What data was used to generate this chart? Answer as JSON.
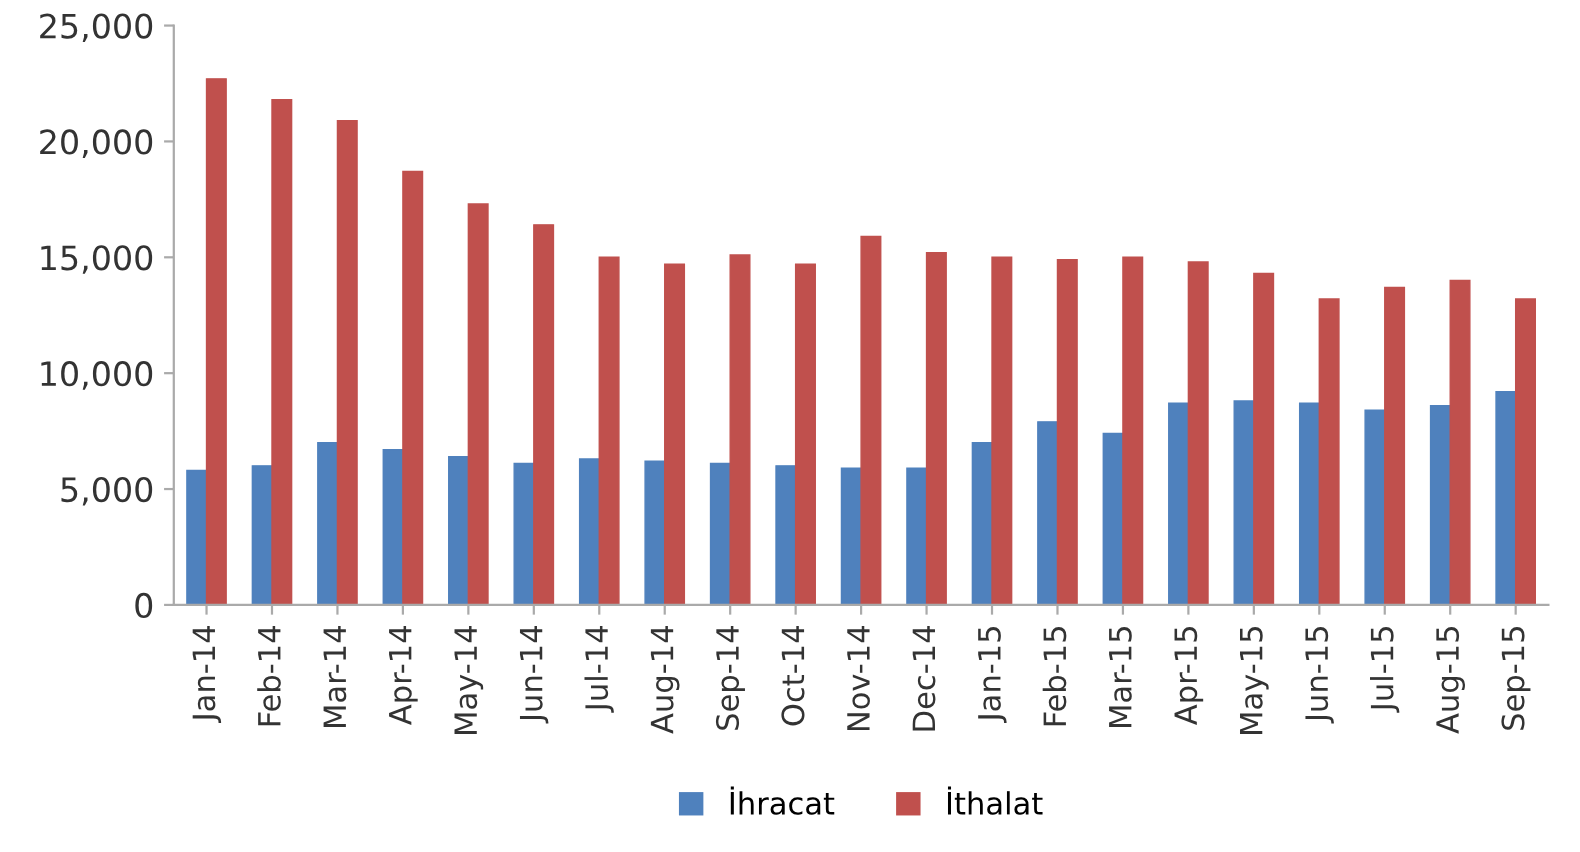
{
  "chart_data": {
    "type": "bar",
    "categories": [
      "Jan-14",
      "Feb-14",
      "Mar-14",
      "Apr-14",
      "May-14",
      "Jun-14",
      "Jul-14",
      "Aug-14",
      "Sep-14",
      "Oct-14",
      "Nov-14",
      "Dec-14",
      "Jan-15",
      "Feb-15",
      "Mar-15",
      "Apr-15",
      "May-15",
      "Jun-15",
      "Jul-15",
      "Aug-15",
      "Sep-15"
    ],
    "series": [
      {
        "name": "İhracat",
        "color": "#4f81bd",
        "values": [
          5800,
          6000,
          7000,
          6700,
          6400,
          6100,
          6300,
          6200,
          6100,
          6000,
          5900,
          5900,
          7000,
          7900,
          7400,
          8700,
          8800,
          8700,
          8400,
          8600,
          9200
        ]
      },
      {
        "name": "İthalat",
        "color": "#c0504d",
        "values": [
          22700,
          21800,
          20900,
          18700,
          17300,
          16400,
          15000,
          14700,
          15100,
          14700,
          15900,
          15200,
          15000,
          14900,
          15000,
          14800,
          14300,
          13200,
          13700,
          14000,
          13200
        ]
      }
    ],
    "ylim": [
      0,
      25000
    ],
    "yticks": [
      {
        "value": 0,
        "label": "0"
      },
      {
        "value": 5000,
        "label": "5,000"
      },
      {
        "value": 10000,
        "label": "10,000"
      },
      {
        "value": 15000,
        "label": "15,000"
      },
      {
        "value": 20000,
        "label": "20,000"
      },
      {
        "value": 25000,
        "label": "25,000"
      }
    ],
    "grid": false,
    "legend": "bottom"
  }
}
